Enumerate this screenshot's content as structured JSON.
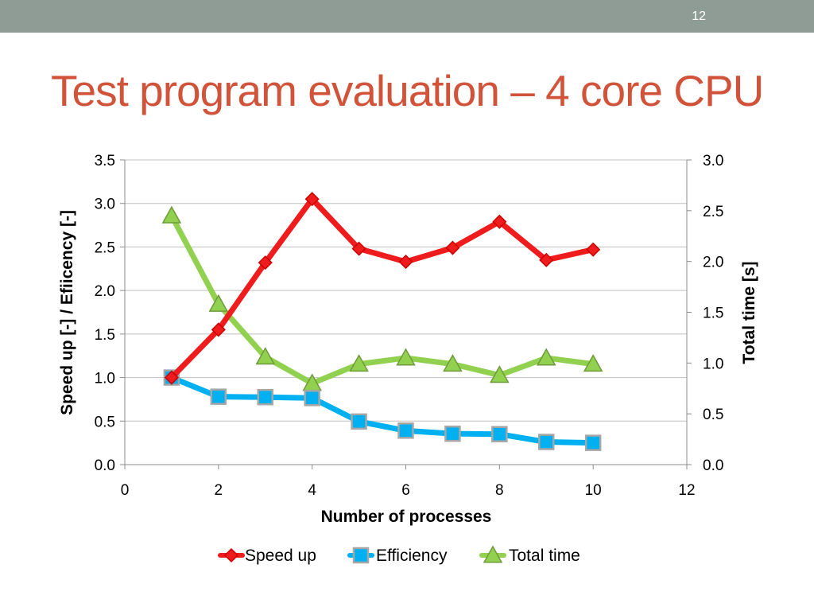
{
  "slide": {
    "page_number": "12",
    "title": "Test program evaluation – 4 core CPU"
  },
  "colors": {
    "header_bar": "#8e9c95",
    "title": "#d0533a",
    "gridline": "#bfbfbf"
  },
  "chart_data": {
    "type": "line",
    "xlabel": "Number of processes",
    "ylabel": "Speed up [-] / Efiicency [-]",
    "y2label": "Total time [s]",
    "xlim": [
      0,
      12
    ],
    "ylim": [
      0,
      3.5
    ],
    "y2lim": [
      0,
      3.0
    ],
    "x_ticks": [
      "0",
      "2",
      "4",
      "6",
      "8",
      "10",
      "12"
    ],
    "y_ticks": [
      "0.0",
      "0.5",
      "1.0",
      "1.5",
      "2.0",
      "2.5",
      "3.0",
      "3.5"
    ],
    "y2_ticks": [
      "0.0",
      "0.5",
      "1.0",
      "1.5",
      "2.0",
      "2.5",
      "3.0"
    ],
    "grid": "horizontal",
    "legend_position": "bottom",
    "series": [
      {
        "name": "Speed up",
        "axis": "left",
        "color": "#ee1c1c",
        "marker": "diamond",
        "x": [
          1,
          2,
          3,
          4,
          5,
          6,
          7,
          8,
          9,
          10
        ],
        "y": [
          1.0,
          1.55,
          2.32,
          3.05,
          2.48,
          2.33,
          2.49,
          2.79,
          2.35,
          2.47
        ]
      },
      {
        "name": "Efficiency",
        "axis": "left",
        "color": "#00b0f0",
        "marker": "square",
        "x": [
          1,
          2,
          3,
          4,
          5,
          6,
          7,
          8,
          9,
          10
        ],
        "y": [
          1.0,
          0.78,
          0.775,
          0.765,
          0.495,
          0.39,
          0.355,
          0.35,
          0.26,
          0.25
        ]
      },
      {
        "name": "Total time",
        "axis": "right",
        "color": "#92d050",
        "marker": "triangle",
        "x": [
          1,
          2,
          3,
          4,
          5,
          6,
          7,
          8,
          9,
          10
        ],
        "y": [
          2.45,
          1.58,
          1.06,
          0.8,
          0.99,
          1.05,
          0.99,
          0.88,
          1.05,
          0.99
        ]
      }
    ]
  }
}
